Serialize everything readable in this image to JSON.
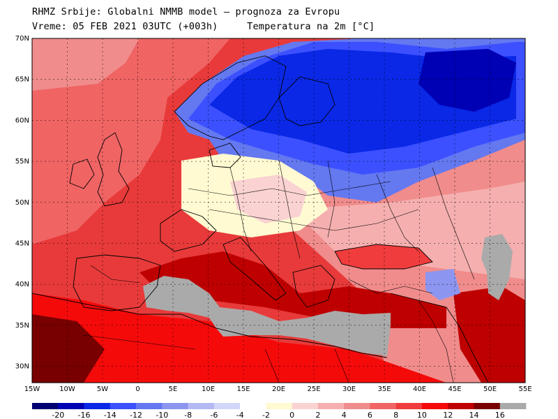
{
  "header": {
    "line1": "RHMZ Srbije: Globalni NMMB model – prognoza za Evropu",
    "line2": "Vreme: 05 FEB 2021 03UTC (+003h)     Temperatura na 2m [°C]"
  },
  "map": {
    "lon_range": [
      -15,
      55
    ],
    "lat_range": [
      28,
      70
    ],
    "lat_labels": [
      "70N",
      "65N",
      "60N",
      "55N",
      "50N",
      "45N",
      "40N",
      "35N",
      "30N"
    ],
    "lon_labels": [
      "15W",
      "10W",
      "5W",
      "0",
      "5E",
      "10E",
      "15E",
      "20E",
      "25E",
      "30E",
      "35E",
      "40E",
      "45E",
      "50E",
      "55E"
    ],
    "ocean_color": "#e83a3a",
    "masked_color": "#aaaaaa"
  },
  "legend": {
    "labels": [
      "-20",
      "-16",
      "-14",
      "-12",
      "-10",
      "-8",
      "-6",
      "-4",
      "-2",
      "0",
      "2",
      "4",
      "6",
      "8",
      "10",
      "12",
      "14",
      "16"
    ],
    "colors": [
      "#000073",
      "#0000b4",
      "#0a28e6",
      "#3c50ff",
      "#6478f0",
      "#8c96f0",
      "#b4b9f5",
      "#d2d7fa",
      "#ffffff",
      "#fffad2",
      "#fad2d2",
      "#f5afaf",
      "#f08c8c",
      "#f06464",
      "#f03c3c",
      "#f50a0a",
      "#be0000",
      "#780000",
      "#aaaaaa"
    ]
  }
}
